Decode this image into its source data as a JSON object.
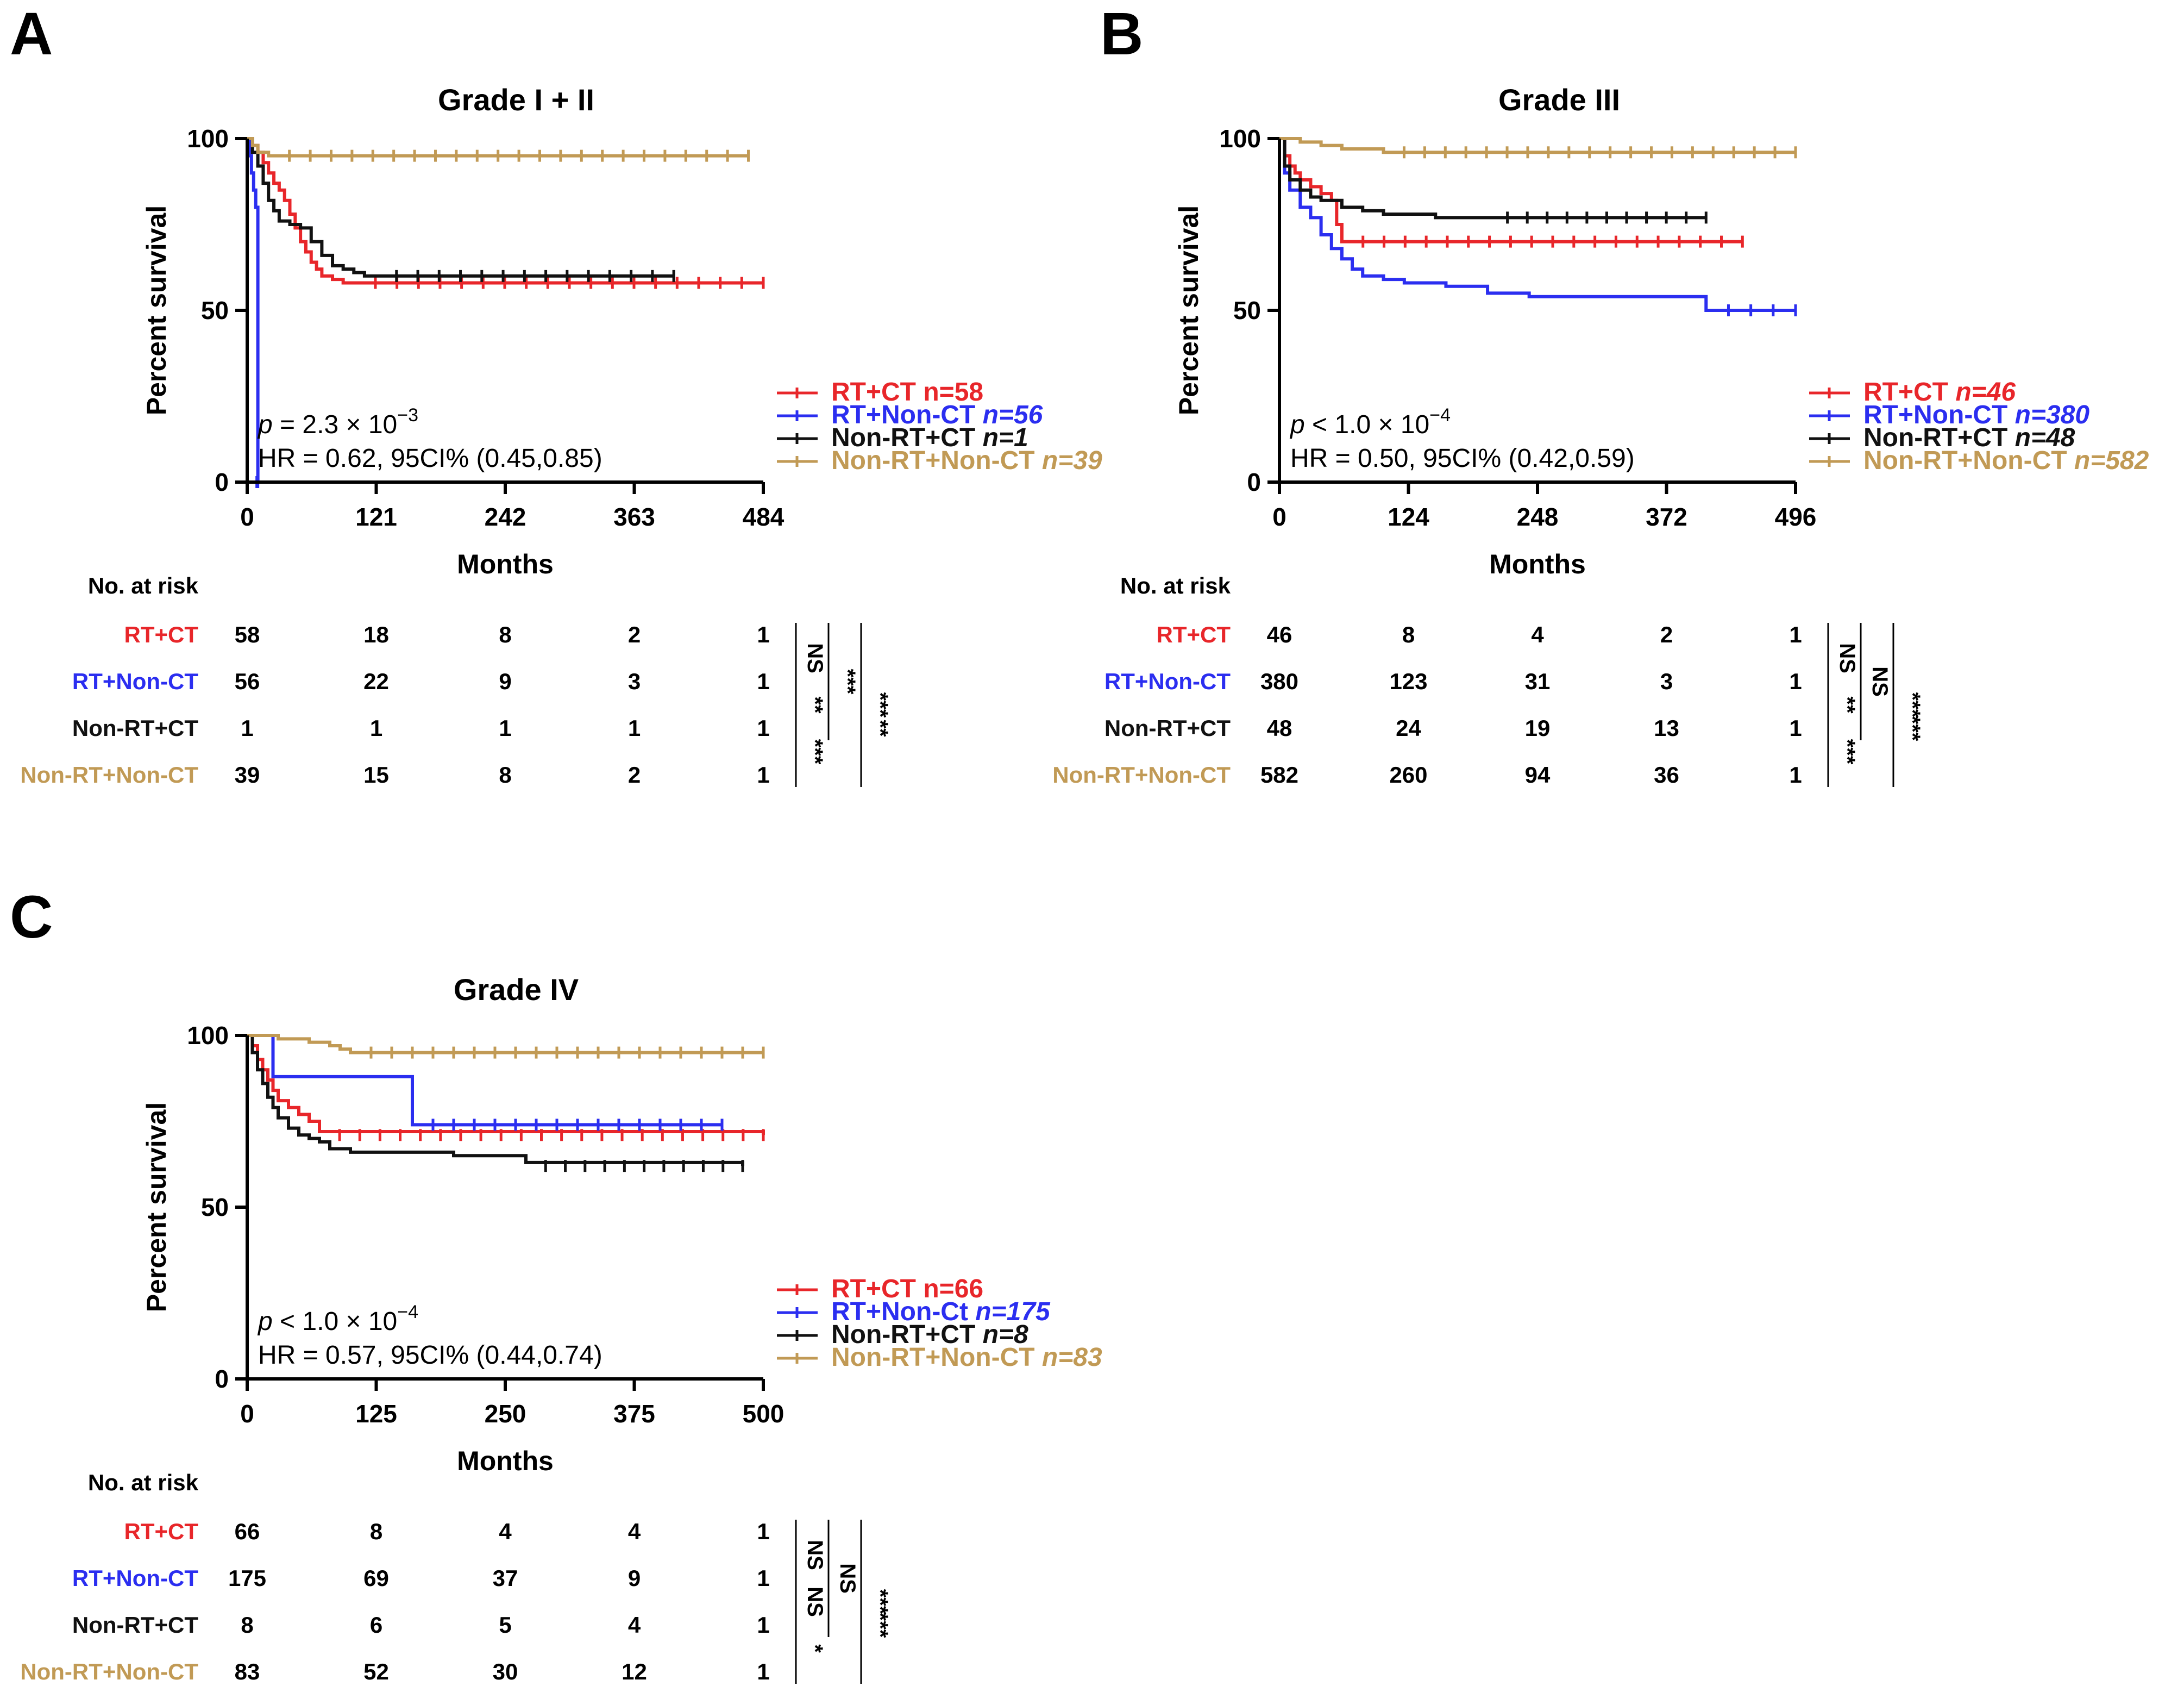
{
  "colors": {
    "RT+CT": "#e8262a",
    "RT+Non-CT": "#2b2ef0",
    "Non-RT+CT": "#111111",
    "Non-RT+Non-CT": "#c19a55",
    "axis": "#000000"
  },
  "chart_data": [
    {
      "id": "A",
      "type": "line",
      "panel_letter": "A",
      "title": "Grade I + II",
      "ylabel": "Percent survival",
      "xlabel": "Months",
      "xlim": [
        0,
        484
      ],
      "ylim": [
        0,
        100
      ],
      "xticks": [
        "0",
        "121",
        "242",
        "363",
        "484"
      ],
      "yticks": [
        "0",
        "50",
        "100"
      ],
      "stats": {
        "p_prefix": "p",
        "p_value": " = 2.3 × 10",
        "p_exp": "−3",
        "hr": "HR = 0.62, 95CI% (0.45,0.85)"
      },
      "legend": [
        {
          "key": "RT+CT",
          "name": "RT+CT",
          "n": "n=58",
          "n_italic": false
        },
        {
          "key": "RT+Non-CT",
          "name": "RT+Non-CT",
          "n": "n=56",
          "n_italic": true
        },
        {
          "key": "Non-RT+CT",
          "name": "Non-RT+CT",
          "n": "n=1",
          "n_italic": true
        },
        {
          "key": "Non-RT+Non-CT",
          "name": "Non-RT+Non-CT",
          "n": "n=39",
          "n_italic": true
        }
      ],
      "series": [
        {
          "key": "RT+CT",
          "name": "RT+CT",
          "x": [
            0,
            5,
            10,
            15,
            20,
            25,
            30,
            35,
            40,
            45,
            50,
            55,
            60,
            65,
            70,
            80,
            90,
            100,
            484
          ],
          "y": [
            100,
            98,
            96,
            93,
            90,
            87,
            85,
            82,
            78,
            74,
            70,
            67,
            64,
            62,
            60,
            59,
            58,
            58,
            58
          ]
        },
        {
          "key": "RT+Non-CT",
          "name": "RT+Non-CT",
          "x": [
            0,
            2,
            4,
            6,
            8,
            10
          ],
          "y": [
            100,
            95,
            90,
            85,
            80,
            0
          ]
        },
        {
          "key": "Non-RT+CT",
          "name": "Non-RT+CT",
          "x": [
            0,
            5,
            10,
            15,
            20,
            25,
            30,
            40,
            50,
            60,
            70,
            80,
            90,
            100,
            110,
            120,
            400
          ],
          "y": [
            100,
            96,
            92,
            87,
            82,
            79,
            76,
            75,
            74,
            70,
            66,
            63,
            62,
            61,
            60,
            60,
            60
          ]
        },
        {
          "key": "Non-RT+Non-CT",
          "name": "Non-RT+Non-CT",
          "x": [
            0,
            5,
            10,
            20,
            470
          ],
          "y": [
            100,
            98,
            96,
            95,
            95
          ]
        }
      ],
      "risk": {
        "header": "No. at risk",
        "rows": [
          {
            "key": "RT+CT",
            "label": "RT+CT",
            "values": [
              "58",
              "18",
              "8",
              "2",
              "1"
            ]
          },
          {
            "key": "RT+Non-CT",
            "label": "RT+Non-CT",
            "values": [
              "56",
              "22",
              "9",
              "3",
              "1"
            ]
          },
          {
            "key": "Non-RT+CT",
            "label": "Non-RT+CT",
            "values": [
              "1",
              "1",
              "1",
              "1",
              "1"
            ]
          },
          {
            "key": "Non-RT+Non-CT",
            "label": "Non-RT+Non-CT",
            "values": [
              "39",
              "15",
              "8",
              "2",
              "1"
            ]
          }
        ],
        "brackets": [
          {
            "from": 0,
            "to": 1,
            "label": "NS"
          },
          {
            "from": 1,
            "to": 2,
            "label": "**"
          },
          {
            "from": 2,
            "to": 3,
            "label": "***"
          },
          {
            "from": 0,
            "to": 2,
            "label": "***"
          },
          {
            "from": 1,
            "to": 3,
            "label": "**"
          },
          {
            "from": 0,
            "to": 3,
            "label": "***"
          }
        ]
      }
    },
    {
      "id": "B",
      "type": "line",
      "panel_letter": "B",
      "title": "Grade III",
      "ylabel": "Percent survival",
      "xlabel": "Months",
      "xlim": [
        0,
        496
      ],
      "ylim": [
        0,
        100
      ],
      "xticks": [
        "0",
        "124",
        "248",
        "372",
        "496"
      ],
      "yticks": [
        "0",
        "50",
        "100"
      ],
      "stats": {
        "p_prefix": "p",
        "p_value": " < 1.0 × 10",
        "p_exp": "−4",
        "hr": "HR = 0.50, 95CI% (0.42,0.59)"
      },
      "legend": [
        {
          "key": "RT+CT",
          "name": "RT+CT",
          "n": "n=46",
          "n_italic": true
        },
        {
          "key": "RT+Non-CT",
          "name": "RT+Non-CT",
          "n": "n=380",
          "n_italic": true
        },
        {
          "key": "Non-RT+CT",
          "name": "Non-RT+CT",
          "n": "n=48",
          "n_italic": true
        },
        {
          "key": "Non-RT+Non-CT",
          "name": "Non-RT+Non-CT",
          "n": "n=582",
          "n_italic": true
        }
      ],
      "series": [
        {
          "key": "RT+CT",
          "name": "RT+CT",
          "x": [
            0,
            5,
            10,
            15,
            20,
            30,
            40,
            50,
            55,
            60,
            445
          ],
          "y": [
            100,
            95,
            92,
            90,
            88,
            86,
            84,
            82,
            75,
            70,
            70
          ]
        },
        {
          "key": "RT+Non-CT",
          "name": "RT+Non-CT",
          "x": [
            0,
            5,
            10,
            20,
            30,
            40,
            50,
            60,
            70,
            80,
            100,
            120,
            160,
            200,
            240,
            300,
            400,
            410,
            496
          ],
          "y": [
            100,
            90,
            85,
            80,
            77,
            72,
            68,
            65,
            62,
            60,
            59,
            58,
            57,
            55,
            54,
            54,
            54,
            50,
            50
          ]
        },
        {
          "key": "Non-RT+CT",
          "name": "Non-RT+CT",
          "x": [
            0,
            5,
            10,
            20,
            30,
            40,
            60,
            80,
            100,
            150,
            200,
            410
          ],
          "y": [
            100,
            92,
            88,
            85,
            83,
            82,
            80,
            79,
            78,
            77,
            77,
            77
          ]
        },
        {
          "key": "Non-RT+Non-CT",
          "name": "Non-RT+Non-CT",
          "x": [
            0,
            20,
            40,
            60,
            80,
            100,
            496
          ],
          "y": [
            100,
            99,
            98,
            97,
            97,
            96,
            96
          ]
        }
      ],
      "risk": {
        "header": "No. at risk",
        "rows": [
          {
            "key": "RT+CT",
            "label": "RT+CT",
            "values": [
              "46",
              "8",
              "4",
              "2",
              "1"
            ]
          },
          {
            "key": "RT+Non-CT",
            "label": "RT+Non-CT",
            "values": [
              "380",
              "123",
              "31",
              "3",
              "1"
            ]
          },
          {
            "key": "Non-RT+CT",
            "label": "Non-RT+CT",
            "values": [
              "48",
              "24",
              "19",
              "13",
              "1"
            ]
          },
          {
            "key": "Non-RT+Non-CT",
            "label": "Non-RT+Non-CT",
            "values": [
              "582",
              "260",
              "94",
              "36",
              "1"
            ]
          }
        ],
        "brackets": [
          {
            "from": 0,
            "to": 1,
            "label": "NS"
          },
          {
            "from": 1,
            "to": 2,
            "label": "**"
          },
          {
            "from": 2,
            "to": 3,
            "label": "***"
          },
          {
            "from": 0,
            "to": 2,
            "label": "NS"
          },
          {
            "from": 1,
            "to": 3,
            "label": "***"
          },
          {
            "from": 0,
            "to": 3,
            "label": "***"
          }
        ]
      }
    },
    {
      "id": "C",
      "type": "line",
      "panel_letter": "C",
      "title": "Grade IV",
      "ylabel": "Percent survival",
      "xlabel": "Months",
      "xlim": [
        0,
        500
      ],
      "ylim": [
        0,
        100
      ],
      "xticks": [
        "0",
        "125",
        "250",
        "375",
        "500"
      ],
      "yticks": [
        "0",
        "50",
        "100"
      ],
      "stats": {
        "p_prefix": "p",
        "p_value": " < 1.0 × 10",
        "p_exp": "−4",
        "hr": "HR = 0.57, 95CI% (0.44,0.74)"
      },
      "legend": [
        {
          "key": "RT+CT",
          "name": "RT+CT",
          "n": "n=66",
          "n_italic": false
        },
        {
          "key": "RT+Non-CT",
          "name": "RT+Non-Ct",
          "n": "n=175",
          "n_italic": true
        },
        {
          "key": "Non-RT+CT",
          "name": "Non-RT+CT",
          "n": "n=8",
          "n_italic": true
        },
        {
          "key": "Non-RT+Non-CT",
          "name": "Non-RT+Non-CT",
          "n": "n=83",
          "n_italic": true
        }
      ],
      "series": [
        {
          "key": "RT+CT",
          "name": "RT+CT",
          "x": [
            0,
            5,
            10,
            15,
            20,
            25,
            30,
            40,
            50,
            60,
            70,
            500
          ],
          "y": [
            100,
            97,
            93,
            90,
            87,
            84,
            81,
            79,
            77,
            75,
            72,
            71
          ]
        },
        {
          "key": "RT+Non-CT",
          "name": "RT+Non-CT",
          "x": [
            0,
            10,
            15,
            25,
            155,
            160,
            460
          ],
          "y": [
            100,
            100,
            100,
            88,
            88,
            74,
            74
          ]
        },
        {
          "key": "Non-RT+CT",
          "name": "Non-RT+CT",
          "x": [
            0,
            5,
            10,
            15,
            20,
            25,
            30,
            40,
            50,
            60,
            70,
            80,
            100,
            200,
            270,
            480
          ],
          "y": [
            100,
            95,
            90,
            86,
            82,
            79,
            76,
            73,
            71,
            70,
            69,
            67,
            66,
            65,
            63,
            62
          ]
        },
        {
          "key": "Non-RT+Non-CT",
          "name": "Non-RT+Non-CT",
          "x": [
            0,
            30,
            60,
            80,
            90,
            100,
            500
          ],
          "y": [
            100,
            99,
            98,
            97,
            96,
            95,
            95
          ]
        }
      ],
      "risk": {
        "header": "No. at risk",
        "rows": [
          {
            "key": "RT+CT",
            "label": "RT+CT",
            "values": [
              "66",
              "8",
              "4",
              "4",
              "1"
            ]
          },
          {
            "key": "RT+Non-CT",
            "label": "RT+Non-CT",
            "values": [
              "175",
              "69",
              "37",
              "9",
              "1"
            ]
          },
          {
            "key": "Non-RT+CT",
            "label": "Non-RT+CT",
            "values": [
              "8",
              "6",
              "5",
              "4",
              "1"
            ]
          },
          {
            "key": "Non-RT+Non-CT",
            "label": "Non-RT+Non-CT",
            "values": [
              "83",
              "52",
              "30",
              "12",
              "1"
            ]
          }
        ],
        "brackets": [
          {
            "from": 0,
            "to": 1,
            "label": "NS"
          },
          {
            "from": 1,
            "to": 2,
            "label": "NS"
          },
          {
            "from": 2,
            "to": 3,
            "label": "*"
          },
          {
            "from": 0,
            "to": 2,
            "label": "NS"
          },
          {
            "from": 1,
            "to": 3,
            "label": "***"
          },
          {
            "from": 0,
            "to": 3,
            "label": "***"
          }
        ]
      }
    }
  ]
}
